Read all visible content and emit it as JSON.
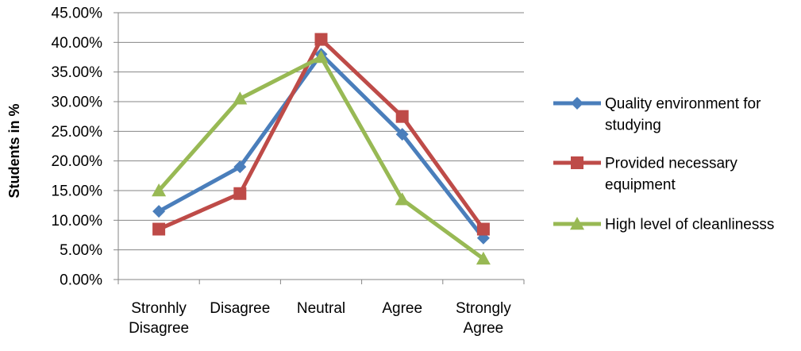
{
  "chart_data": {
    "type": "line",
    "ylabel": "Students in %",
    "xlabel": "",
    "categories": [
      [
        "Stronhly",
        "Disagree"
      ],
      [
        "Disagree"
      ],
      [
        "Neutral"
      ],
      [
        "Agree"
      ],
      [
        "Strongly",
        "Agree"
      ]
    ],
    "ylim": [
      0,
      0.45
    ],
    "yticks": [
      0,
      0.05,
      0.1,
      0.15,
      0.2,
      0.25,
      0.3,
      0.35,
      0.4,
      0.45
    ],
    "ytick_labels": [
      "0.00%",
      "5.00%",
      "10.00%",
      "15.00%",
      "20.00%",
      "25.00%",
      "30.00%",
      "35.00%",
      "40.00%",
      "45.00%"
    ],
    "grid": "horizontal",
    "legend_position": "right",
    "series": [
      {
        "name_lines": [
          "Quality environment for",
          "studying"
        ],
        "values": [
          0.115,
          0.19,
          0.38,
          0.245,
          0.07
        ],
        "color": "#4a7ebb",
        "marker": "diamond"
      },
      {
        "name_lines": [
          "Provided necessary",
          "equipment"
        ],
        "values": [
          0.085,
          0.145,
          0.405,
          0.275,
          0.085
        ],
        "color": "#be4b48",
        "marker": "square"
      },
      {
        "name_lines": [
          "High level of cleanlinesss"
        ],
        "values": [
          0.15,
          0.305,
          0.375,
          0.135,
          0.035
        ],
        "color": "#98b954",
        "marker": "triangle"
      }
    ]
  }
}
